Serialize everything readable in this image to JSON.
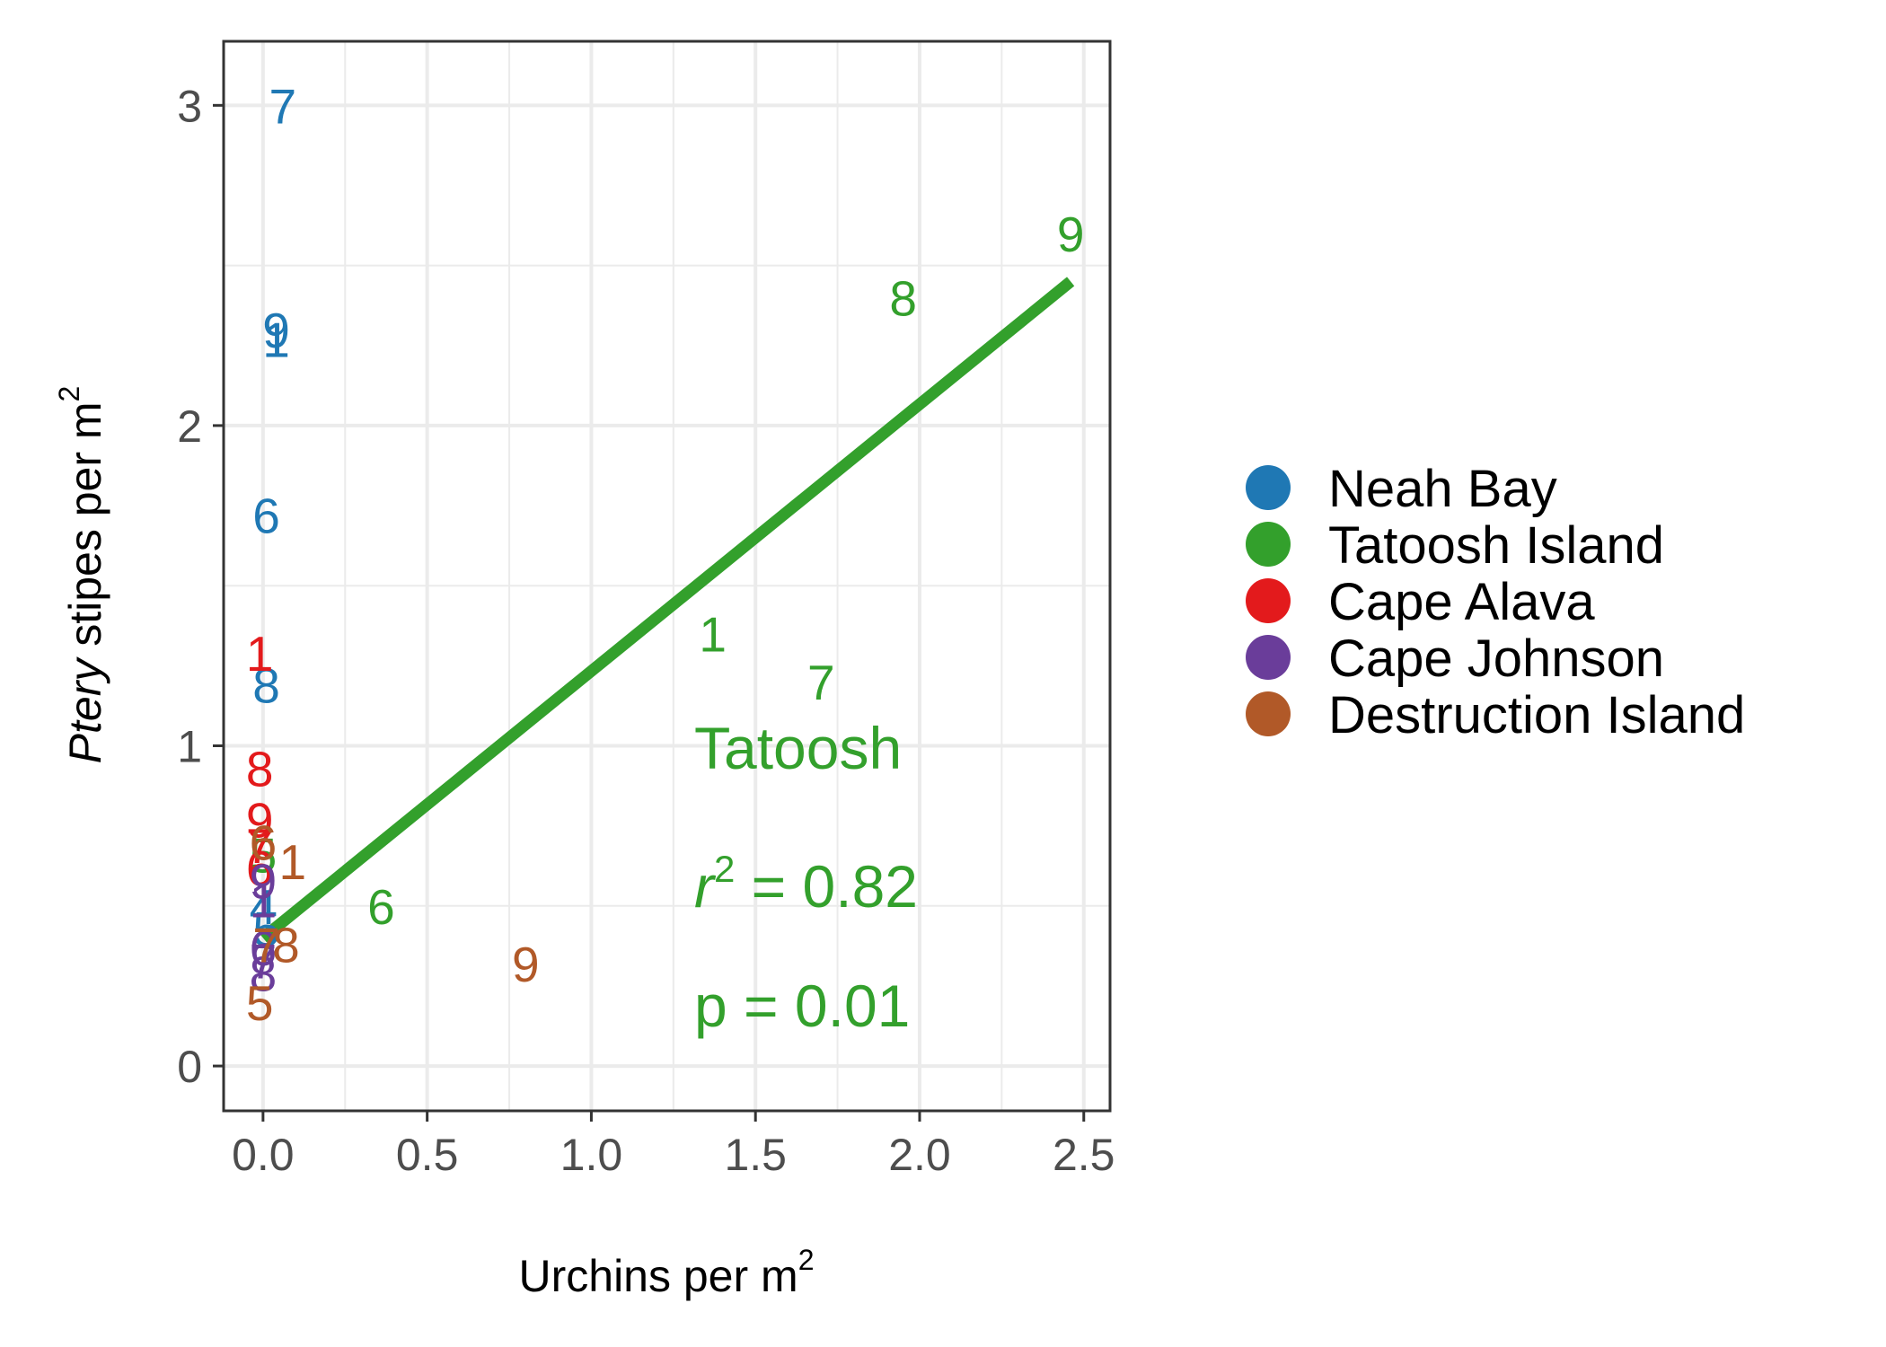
{
  "chart_data": {
    "type": "scatter",
    "title": "",
    "xlabel": {
      "main": "Urchins per m",
      "sup": "2"
    },
    "ylabel": {
      "italic": "Ptery",
      "main": " stipes per m",
      "sup": "2"
    },
    "xlim": [
      -0.12,
      2.58
    ],
    "ylim": [
      -0.14,
      3.2
    ],
    "x_ticks": [
      0.0,
      0.5,
      1.0,
      1.5,
      2.0,
      2.5
    ],
    "x_tick_labels": [
      "0.0",
      "0.5",
      "1.0",
      "1.5",
      "2.0",
      "2.5"
    ],
    "y_ticks": [
      0,
      1,
      2,
      3
    ],
    "y_tick_labels": [
      "0",
      "1",
      "2",
      "3"
    ],
    "grid": true,
    "legend_position": "right",
    "series": [
      {
        "name": "Neah Bay",
        "color": "#1f78b4",
        "points": [
          {
            "x": 0.06,
            "y": 3.0,
            "label": "7"
          },
          {
            "x": 0.04,
            "y": 2.3,
            "label": "9"
          },
          {
            "x": 0.04,
            "y": 2.27,
            "label": "1"
          },
          {
            "x": 0.01,
            "y": 1.72,
            "label": "6"
          },
          {
            "x": 0.01,
            "y": 1.19,
            "label": "8"
          },
          {
            "x": 0.0,
            "y": 0.5,
            "label": "4"
          },
          {
            "x": 0.01,
            "y": 0.43,
            "label": "5"
          }
        ]
      },
      {
        "name": "Tatoosh Island",
        "color": "#33a02c",
        "points": [
          {
            "x": 2.46,
            "y": 2.6,
            "label": "9"
          },
          {
            "x": 1.95,
            "y": 2.4,
            "label": "8"
          },
          {
            "x": 1.37,
            "y": 1.35,
            "label": "1"
          },
          {
            "x": 1.7,
            "y": 1.2,
            "label": "7"
          },
          {
            "x": 0.36,
            "y": 0.5,
            "label": "6"
          },
          {
            "x": 0.0,
            "y": 0.66,
            "label": "5"
          }
        ]
      },
      {
        "name": "Cape Alava",
        "color": "#e31a1c",
        "points": [
          {
            "x": -0.01,
            "y": 1.29,
            "label": "1"
          },
          {
            "x": -0.01,
            "y": 0.93,
            "label": "8"
          },
          {
            "x": -0.01,
            "y": 0.77,
            "label": "9"
          },
          {
            "x": -0.01,
            "y": 0.69,
            "label": "7"
          },
          {
            "x": -0.01,
            "y": 0.62,
            "label": "6"
          }
        ]
      },
      {
        "name": "Cape Johnson",
        "color": "#6a3d9a",
        "points": [
          {
            "x": 0.0,
            "y": 0.58,
            "label": "9"
          },
          {
            "x": 0.0,
            "y": 0.52,
            "label": "1"
          },
          {
            "x": 0.0,
            "y": 0.37,
            "label": "6"
          },
          {
            "x": 0.0,
            "y": 0.33,
            "label": "7"
          },
          {
            "x": 0.0,
            "y": 0.29,
            "label": "8"
          }
        ]
      },
      {
        "name": "Destruction Island",
        "color": "#b15928",
        "points": [
          {
            "x": 0.09,
            "y": 0.64,
            "label": "1"
          },
          {
            "x": 0.0,
            "y": 0.7,
            "label": "6"
          },
          {
            "x": 0.07,
            "y": 0.38,
            "label": "8"
          },
          {
            "x": 0.01,
            "y": 0.38,
            "label": "7"
          },
          {
            "x": 0.8,
            "y": 0.32,
            "label": "9"
          },
          {
            "x": -0.01,
            "y": 0.2,
            "label": "5"
          }
        ]
      }
    ],
    "fit_line": {
      "series": "Tatoosh Island",
      "color": "#33a02c",
      "x": [
        0.0,
        2.46
      ],
      "y": [
        0.4,
        2.45
      ]
    },
    "annotations": {
      "color": "#33a02c",
      "site": "Tatoosh",
      "r2_symbol": "r",
      "r2_sup": "2",
      "r2_value": " = 0.82",
      "p_text": "p = 0.01"
    }
  }
}
